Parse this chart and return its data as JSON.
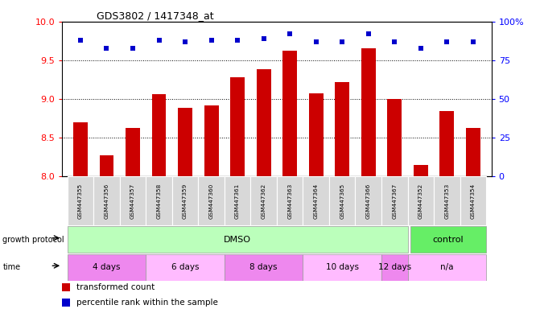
{
  "title": "GDS3802 / 1417348_at",
  "samples": [
    "GSM447355",
    "GSM447356",
    "GSM447357",
    "GSM447358",
    "GSM447359",
    "GSM447360",
    "GSM447361",
    "GSM447362",
    "GSM447363",
    "GSM447364",
    "GSM447365",
    "GSM447366",
    "GSM447367",
    "GSM447352",
    "GSM447353",
    "GSM447354"
  ],
  "transformed_counts": [
    8.7,
    8.27,
    8.62,
    9.06,
    8.88,
    8.92,
    9.28,
    9.38,
    9.62,
    9.07,
    9.22,
    9.65,
    9.0,
    8.14,
    8.84,
    8.62
  ],
  "percentile_ranks": [
    88,
    83,
    83,
    88,
    87,
    88,
    88,
    89,
    92,
    87,
    87,
    92,
    87,
    83,
    87,
    87
  ],
  "ylim_left": [
    8.0,
    10.0
  ],
  "ylim_right": [
    0,
    100
  ],
  "yticks_left": [
    8.0,
    8.5,
    9.0,
    9.5,
    10.0
  ],
  "yticks_right": [
    0,
    25,
    50,
    75,
    100
  ],
  "bar_color": "#cc0000",
  "dot_color": "#0000cc",
  "dmso_color": "#bbffbb",
  "control_color": "#66ee66",
  "time_color_alt": "#ee88ee",
  "time_color_base": "#ffbbff",
  "sample_bg": "#d8d8d8",
  "grid_color": "#000000",
  "time_blocks": [
    {
      "label": "4 days",
      "s": 0,
      "e": 2
    },
    {
      "label": "6 days",
      "s": 3,
      "e": 5
    },
    {
      "label": "8 days",
      "s": 6,
      "e": 8
    },
    {
      "label": "10 days",
      "s": 9,
      "e": 11
    },
    {
      "label": "12 days",
      "s": 12,
      "e": 12
    },
    {
      "label": "n/a",
      "s": 13,
      "e": 15
    }
  ],
  "legend_items": [
    {
      "label": "transformed count",
      "color": "#cc0000"
    },
    {
      "label": "percentile rank within the sample",
      "color": "#0000cc"
    }
  ]
}
